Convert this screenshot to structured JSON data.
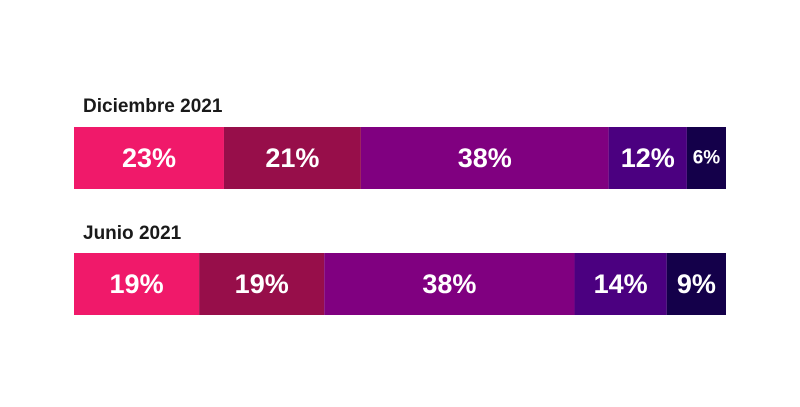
{
  "chart_data": {
    "type": "bar",
    "orientation": "horizontal-stacked-100",
    "series_colors": [
      "#f0196a",
      "#970e4a",
      "#800080",
      "#4b0080",
      "#14004a"
    ],
    "rows": [
      {
        "label": "Diciembre 2021",
        "values": [
          23,
          21,
          38,
          12,
          6
        ],
        "value_labels": [
          "23%",
          "21%",
          "38%",
          "12%",
          "6%"
        ]
      },
      {
        "label": "Junio 2021",
        "values": [
          19,
          19,
          38,
          14,
          9
        ],
        "value_labels": [
          "19%",
          "19%",
          "38%",
          "14%",
          "9%"
        ]
      }
    ]
  }
}
